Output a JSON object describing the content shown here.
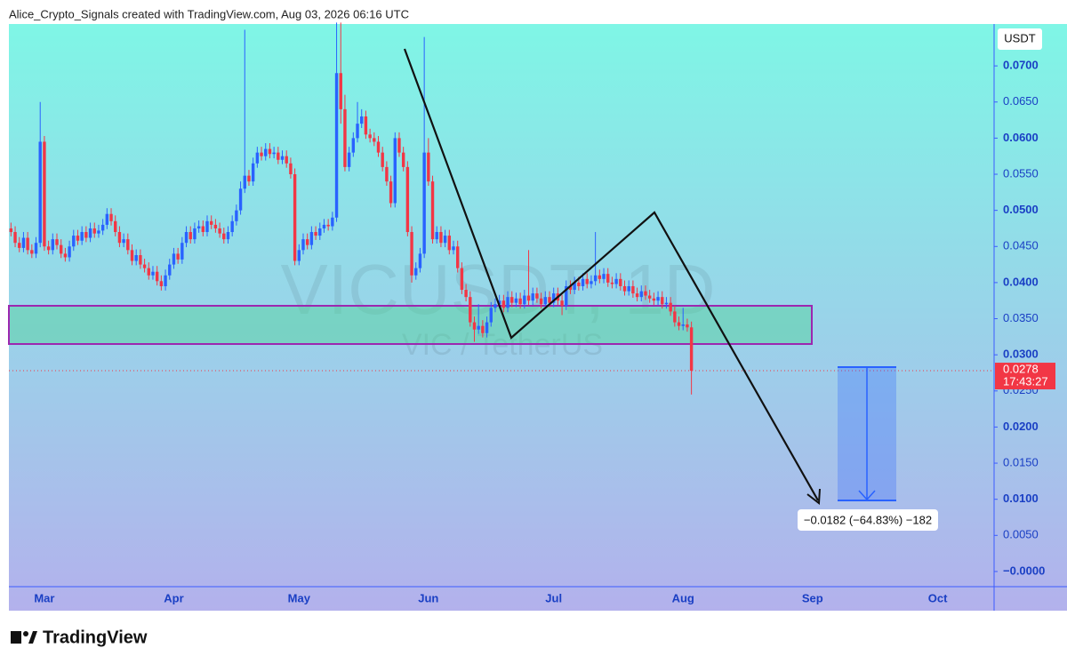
{
  "header": {
    "text": "Alice_Crypto_Signals created with TradingView.com, Aug 03, 2026 06:16 UTC"
  },
  "chart_data": {
    "type": "candlestick",
    "watermark": "VICUSDT, 1D",
    "subtitle": "VIC / TetherUS",
    "y_axis_label": "USDT",
    "categories": [
      null,
      null,
      null,
      null,
      null,
      null,
      null,
      null,
      "Mar",
      null,
      null,
      null,
      null,
      null,
      null,
      null,
      null,
      null,
      null,
      null,
      null,
      null,
      null,
      null,
      null,
      null,
      null,
      null,
      null,
      null,
      null,
      null,
      null,
      null,
      null,
      null,
      null,
      null,
      null,
      "Apr",
      null,
      null,
      null,
      null,
      null,
      null,
      null,
      null,
      null,
      null,
      null,
      null,
      null,
      null,
      null,
      null,
      null,
      null,
      null,
      null,
      null,
      null,
      null,
      null,
      null,
      null,
      null,
      null,
      null,
      "May",
      null,
      null,
      null,
      null,
      null,
      null,
      null,
      null,
      null,
      null,
      null,
      null,
      null,
      null,
      null,
      null,
      null,
      null,
      null,
      null,
      null,
      null,
      null,
      null,
      null,
      null,
      null,
      null,
      null,
      null,
      "Jun",
      null,
      null,
      null,
      null,
      null,
      null,
      null,
      null,
      null,
      null,
      null,
      null,
      null,
      null,
      null,
      null,
      null,
      null,
      null,
      null,
      null,
      null,
      null,
      null,
      null,
      null,
      null,
      null,
      null,
      "Jul",
      null,
      null,
      null,
      null,
      null,
      null,
      null,
      null,
      null,
      null,
      null,
      null,
      null,
      null,
      null,
      null,
      null,
      null,
      null,
      null,
      null,
      null,
      null,
      null,
      null,
      null,
      null,
      null,
      null,
      null,
      "Aug",
      null,
      null,
      null,
      null,
      null,
      null,
      null,
      null,
      null,
      null,
      null,
      null,
      null,
      null,
      null,
      null,
      null,
      null,
      null,
      null,
      null,
      null,
      null,
      null,
      null,
      null,
      null,
      null,
      null,
      null,
      "Sep",
      null,
      null,
      null,
      null,
      null,
      null,
      null,
      null,
      null,
      null,
      null,
      null,
      null,
      null,
      null,
      null,
      null,
      null,
      null,
      null,
      null,
      null,
      null,
      null,
      null,
      null,
      null,
      null,
      null,
      "Oct",
      null,
      null,
      null,
      null,
      null,
      null,
      null,
      null,
      null,
      null,
      null,
      null,
      null
    ],
    "open": [
      0.0475,
      0.047,
      0.0455,
      0.0448,
      0.0462,
      0.0445,
      0.044,
      0.0455,
      0.0595,
      0.045,
      0.0445,
      0.046,
      0.0452,
      0.044,
      0.0435,
      0.045,
      0.0465,
      0.0458,
      0.047,
      0.0462,
      0.0475,
      0.0468,
      0.0472,
      0.048,
      0.0495,
      0.0485,
      0.047,
      0.0455,
      0.046,
      0.0445,
      0.043,
      0.0438,
      0.0425,
      0.042,
      0.041,
      0.0415,
      0.0402,
      0.0395,
      0.041,
      0.0425,
      0.044,
      0.0432,
      0.0455,
      0.047,
      0.046,
      0.0475,
      0.0478,
      0.047,
      0.0485,
      0.048,
      0.0475,
      0.0468,
      0.046,
      0.047,
      0.0485,
      0.05,
      0.053,
      0.0548,
      0.054,
      0.0565,
      0.058,
      0.0575,
      0.0585,
      0.0578,
      0.058,
      0.057,
      0.0575,
      0.0565,
      0.055,
      0.043,
      0.0445,
      0.046,
      0.0452,
      0.047,
      0.0465,
      0.0475,
      0.048,
      0.0478,
      0.049,
      0.069,
      0.064,
      0.056,
      0.058,
      0.06,
      0.062,
      0.063,
      0.0605,
      0.06,
      0.0595,
      0.058,
      0.056,
      0.054,
      0.051,
      0.06,
      0.058,
      0.056,
      0.047,
      0.041,
      0.042,
      0.044,
      0.058,
      0.054,
      0.046,
      0.047,
      0.0455,
      0.0465,
      0.0445,
      0.045,
      0.042,
      0.039,
      0.038,
      0.0345,
      0.0335,
      0.034,
      0.033,
      0.0345,
      0.0365,
      0.037,
      0.0375,
      0.0365,
      0.038,
      0.0372,
      0.0378,
      0.037,
      0.0382,
      0.0375,
      0.0385,
      0.0378,
      0.037,
      0.038,
      0.0372,
      0.0385,
      0.0375,
      0.0368,
      0.0395,
      0.039,
      0.04,
      0.0395,
      0.0405,
      0.0398,
      0.0402,
      0.041,
      0.0405,
      0.0412,
      0.04,
      0.0398,
      0.0405,
      0.0395,
      0.0388,
      0.0395,
      0.0385,
      0.038,
      0.0388,
      0.0382,
      0.0378,
      0.0375,
      0.038,
      0.037,
      0.0372,
      0.036,
      0.0345,
      0.034,
      0.0342,
      0.0338,
      null,
      null,
      null,
      null,
      null,
      null,
      null,
      null,
      null,
      null,
      null,
      null,
      null,
      null,
      null,
      null,
      null,
      null,
      null,
      null,
      null,
      null,
      null,
      null,
      null,
      null,
      null,
      null,
      null,
      null,
      null,
      null,
      null,
      null,
      null,
      null,
      null,
      null,
      null,
      null,
      null,
      null,
      null,
      null,
      null,
      null,
      null,
      null,
      null,
      null,
      null,
      null,
      null,
      null,
      null,
      null,
      null,
      null,
      null,
      null,
      null,
      null,
      null,
      null,
      null,
      null,
      null,
      null,
      null,
      null,
      null,
      null
    ],
    "high": [
      0.0483,
      0.0478,
      0.0463,
      0.047,
      0.047,
      0.0453,
      0.0463,
      0.065,
      0.0603,
      0.0458,
      0.0468,
      0.0468,
      0.046,
      0.0448,
      0.0458,
      0.0473,
      0.0473,
      0.0478,
      0.0478,
      0.0483,
      0.0483,
      0.048,
      0.0488,
      0.0503,
      0.0503,
      0.0493,
      0.0478,
      0.0468,
      0.0468,
      0.0453,
      0.0446,
      0.0446,
      0.0433,
      0.0428,
      0.0423,
      0.0423,
      0.041,
      0.0418,
      0.0433,
      0.0448,
      0.0448,
      0.0463,
      0.0478,
      0.0478,
      0.0483,
      0.0486,
      0.0486,
      0.0493,
      0.0493,
      0.0488,
      0.0483,
      0.0476,
      0.0478,
      0.0493,
      0.0508,
      0.054,
      0.075,
      0.0556,
      0.0573,
      0.0588,
      0.0588,
      0.0593,
      0.0593,
      0.0588,
      0.0588,
      0.0583,
      0.0583,
      0.0573,
      0.0558,
      0.0453,
      0.0468,
      0.0468,
      0.0478,
      0.0478,
      0.0483,
      0.0488,
      0.0488,
      0.0498,
      0.076,
      0.076,
      0.066,
      0.0588,
      0.0608,
      0.065,
      0.064,
      0.0638,
      0.0613,
      0.0608,
      0.0603,
      0.0588,
      0.0568,
      0.0548,
      0.0608,
      0.0608,
      0.0588,
      0.0568,
      0.0478,
      0.0428,
      0.0448,
      0.074,
      0.06,
      0.0548,
      0.0478,
      0.0478,
      0.0473,
      0.0473,
      0.0458,
      0.0458,
      0.0428,
      0.0398,
      0.0388,
      0.0353,
      0.037,
      0.0348,
      0.0353,
      0.0373,
      0.0378,
      0.0383,
      0.0383,
      0.0388,
      0.0388,
      0.0386,
      0.0386,
      0.039,
      0.0445,
      0.0393,
      0.0393,
      0.0386,
      0.0388,
      0.0388,
      0.0393,
      0.0393,
      0.0383,
      0.0403,
      0.0403,
      0.0408,
      0.0408,
      0.0413,
      0.0413,
      0.041,
      0.047,
      0.0418,
      0.042,
      0.042,
      0.0408,
      0.0413,
      0.0413,
      0.0403,
      0.0403,
      0.0403,
      0.0393,
      0.0396,
      0.0396,
      0.039,
      0.0386,
      0.0388,
      0.0388,
      0.038,
      0.038,
      0.0368,
      0.0353,
      0.0365,
      0.035,
      0.0346,
      null,
      null,
      null,
      null,
      null,
      null,
      null,
      null,
      null,
      null,
      null,
      null,
      null,
      null,
      null,
      null,
      null,
      null,
      null,
      null,
      null,
      null,
      null,
      null,
      null,
      null,
      null,
      null,
      null,
      null,
      null,
      null,
      null,
      null,
      null,
      null,
      null,
      null,
      null,
      null,
      null,
      null,
      null,
      null,
      null,
      null,
      null,
      null,
      null,
      null,
      null,
      null,
      null,
      null,
      null,
      null,
      null,
      null,
      null,
      null,
      null,
      null,
      null,
      null,
      null,
      null,
      null,
      null,
      null,
      null,
      null,
      null
    ],
    "low": [
      0.0464,
      0.0449,
      0.0442,
      0.0442,
      0.0439,
      0.0434,
      0.0434,
      0.0449,
      0.0444,
      0.0439,
      0.0439,
      0.0446,
      0.0434,
      0.0429,
      0.0429,
      0.0444,
      0.0452,
      0.0452,
      0.0456,
      0.0456,
      0.0462,
      0.0462,
      0.0466,
      0.0474,
      0.0479,
      0.0464,
      0.0449,
      0.0449,
      0.0439,
      0.0424,
      0.0424,
      0.0419,
      0.0414,
      0.0404,
      0.0404,
      0.0396,
      0.0389,
      0.0389,
      0.0404,
      0.0419,
      0.0426,
      0.0426,
      0.0449,
      0.0454,
      0.0454,
      0.0469,
      0.0464,
      0.0464,
      0.0474,
      0.0469,
      0.0462,
      0.0454,
      0.0454,
      0.0464,
      0.0479,
      0.0494,
      0.0524,
      0.0534,
      0.0534,
      0.0559,
      0.0569,
      0.0569,
      0.0572,
      0.0572,
      0.0564,
      0.0564,
      0.0559,
      0.0544,
      0.0424,
      0.0424,
      0.0439,
      0.0446,
      0.0446,
      0.0459,
      0.0459,
      0.0469,
      0.0472,
      0.0472,
      0.0484,
      0.062,
      0.0554,
      0.0554,
      0.0574,
      0.0594,
      0.0614,
      0.0599,
      0.0594,
      0.0589,
      0.0574,
      0.0554,
      0.0534,
      0.0504,
      0.0504,
      0.0574,
      0.0554,
      0.0464,
      0.04,
      0.0404,
      0.0414,
      0.0434,
      0.0534,
      0.0454,
      0.0454,
      0.0449,
      0.0449,
      0.0439,
      0.0439,
      0.0414,
      0.0384,
      0.0374,
      0.0339,
      0.0318,
      0.0329,
      0.0324,
      0.0324,
      0.0339,
      0.0359,
      0.0364,
      0.0359,
      0.0359,
      0.0366,
      0.0366,
      0.0364,
      0.0364,
      0.0369,
      0.0369,
      0.0372,
      0.0364,
      0.0364,
      0.0366,
      0.0366,
      0.0369,
      0.0355,
      0.0362,
      0.0384,
      0.0384,
      0.0389,
      0.0389,
      0.0392,
      0.0392,
      0.0396,
      0.0399,
      0.0399,
      0.0394,
      0.0392,
      0.0392,
      0.0389,
      0.0382,
      0.0382,
      0.0379,
      0.0374,
      0.0374,
      0.0376,
      0.0372,
      0.0369,
      0.0369,
      0.0364,
      0.0364,
      0.0354,
      0.0339,
      0.0334,
      0.0334,
      0.0332,
      0.0245,
      null,
      null,
      null,
      null,
      null,
      null,
      null,
      null,
      null,
      null,
      null,
      null,
      null,
      null,
      null,
      null,
      null,
      null,
      null,
      null,
      null,
      null,
      null,
      null,
      null,
      null,
      null,
      null,
      null,
      null,
      null,
      null,
      null,
      null,
      null,
      null,
      null,
      null,
      null,
      null,
      null,
      null,
      null,
      null,
      null,
      null,
      null,
      null,
      null,
      null,
      null,
      null,
      null,
      null,
      null,
      null,
      null,
      null,
      null,
      null,
      null,
      null,
      null,
      null,
      null,
      null,
      null,
      null,
      null,
      null,
      null,
      null
    ],
    "close": [
      0.047,
      0.0455,
      0.0448,
      0.0462,
      0.0445,
      0.044,
      0.0455,
      0.0595,
      0.045,
      0.0445,
      0.046,
      0.0452,
      0.044,
      0.0435,
      0.045,
      0.0465,
      0.0458,
      0.047,
      0.0462,
      0.0475,
      0.0468,
      0.0472,
      0.048,
      0.0495,
      0.0485,
      0.047,
      0.0455,
      0.046,
      0.0445,
      0.043,
      0.0438,
      0.0425,
      0.042,
      0.041,
      0.0415,
      0.0402,
      0.0395,
      0.041,
      0.0425,
      0.044,
      0.0432,
      0.0455,
      0.047,
      0.046,
      0.0475,
      0.0478,
      0.047,
      0.0485,
      0.048,
      0.0475,
      0.0468,
      0.046,
      0.047,
      0.0485,
      0.05,
      0.053,
      0.0548,
      0.054,
      0.0565,
      0.058,
      0.0575,
      0.0585,
      0.0578,
      0.058,
      0.057,
      0.0575,
      0.0565,
      0.055,
      0.043,
      0.0445,
      0.046,
      0.0452,
      0.047,
      0.0465,
      0.0475,
      0.048,
      0.0478,
      0.049,
      0.069,
      0.064,
      0.056,
      0.058,
      0.06,
      0.062,
      0.063,
      0.0605,
      0.06,
      0.0595,
      0.058,
      0.056,
      0.054,
      0.051,
      0.06,
      0.058,
      0.056,
      0.047,
      0.041,
      0.042,
      0.044,
      0.058,
      0.054,
      0.046,
      0.047,
      0.0455,
      0.0465,
      0.0445,
      0.045,
      0.042,
      0.039,
      0.038,
      0.0345,
      0.0335,
      0.034,
      0.033,
      0.0345,
      0.0365,
      0.037,
      0.0375,
      0.0365,
      0.038,
      0.0372,
      0.0378,
      0.037,
      0.0382,
      0.0375,
      0.0385,
      0.0378,
      0.037,
      0.038,
      0.0372,
      0.0385,
      0.0375,
      0.0368,
      0.0395,
      0.039,
      0.04,
      0.0395,
      0.0405,
      0.0398,
      0.0402,
      0.041,
      0.0405,
      0.0412,
      0.04,
      0.0398,
      0.0405,
      0.0395,
      0.0388,
      0.0395,
      0.0385,
      0.038,
      0.0388,
      0.0382,
      0.0378,
      0.0375,
      0.038,
      0.037,
      0.0372,
      0.036,
      0.0345,
      0.034,
      0.0342,
      0.0338,
      0.0278,
      null,
      null,
      null,
      null,
      null,
      null,
      null,
      null,
      null,
      null,
      null,
      null,
      null,
      null,
      null,
      null,
      null,
      null,
      null,
      null,
      null,
      null,
      null,
      null,
      null,
      null,
      null,
      null,
      null,
      null,
      null,
      null,
      null,
      null,
      null,
      null,
      null,
      null,
      null,
      null,
      null,
      null,
      null,
      null,
      null,
      null,
      null,
      null,
      null,
      null,
      null,
      null,
      null,
      null,
      null,
      null,
      null,
      null,
      null,
      null,
      null,
      null,
      null,
      null,
      null,
      null,
      null,
      null,
      null,
      null,
      null,
      null
    ],
    "up_color": "#2962ff",
    "down_color": "#f23645",
    "ylim": [
      -0.0021,
      0.0758
    ],
    "yticks": [
      {
        "value": 0,
        "label": "−0.0000"
      },
      {
        "value": 0.005,
        "label": "0.0050"
      },
      {
        "value": 0.01,
        "label": "0.0100"
      },
      {
        "value": 0.015,
        "label": "0.0150"
      },
      {
        "value": 0.02,
        "label": "0.0200"
      },
      {
        "value": 0.025,
        "label": "0.0250"
      },
      {
        "value": 0.03,
        "label": "0.0300"
      },
      {
        "value": 0.035,
        "label": "0.0350"
      },
      {
        "value": 0.04,
        "label": "0.0400"
      },
      {
        "value": 0.045,
        "label": "0.0450"
      },
      {
        "value": 0.05,
        "label": "0.0500"
      },
      {
        "value": 0.055,
        "label": "0.0550"
      },
      {
        "value": 0.06,
        "label": "0.0600"
      },
      {
        "value": 0.065,
        "label": "0.0650"
      },
      {
        "value": 0.07,
        "label": "0.0700"
      }
    ],
    "price_label_time": "17:43:27",
    "measure_label": "−0.0182 (−64.83%) −182"
  },
  "footer": {
    "logo": "TradingView"
  }
}
